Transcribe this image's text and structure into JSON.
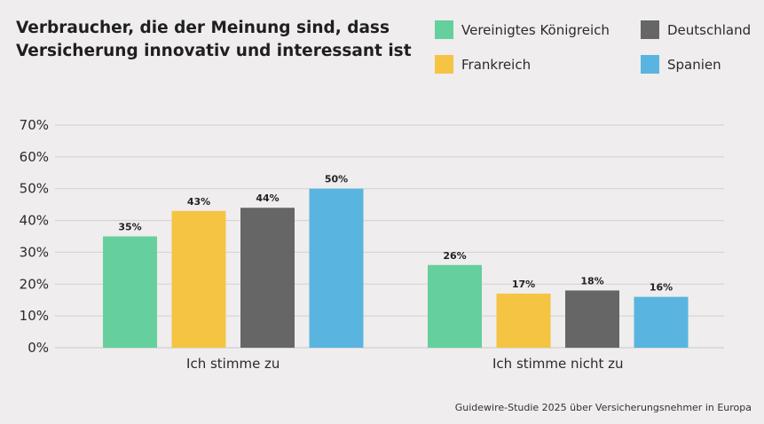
{
  "chart_data": {
    "type": "bar",
    "title": "Verbraucher, die der Meinung sind, dass Versicherung innovativ und interessant ist",
    "categories": [
      "Ich stimme zu",
      "Ich stimme nicht zu"
    ],
    "series": [
      {
        "name": "Vereinigtes Königreich",
        "color": "#66cf9e",
        "values": [
          35,
          26
        ],
        "labels": [
          "35%",
          "26%"
        ]
      },
      {
        "name": "Frankreich",
        "color": "#f5c443",
        "values": [
          43,
          17
        ],
        "labels": [
          "43%",
          "17%"
        ]
      },
      {
        "name": "Deutschland",
        "color": "#666666",
        "values": [
          44,
          18
        ],
        "labels": [
          "44%",
          "18%"
        ]
      },
      {
        "name": "Spanien",
        "color": "#59b5df",
        "values": [
          50,
          16
        ],
        "labels": [
          "50%",
          "16%"
        ]
      }
    ],
    "yticks": [
      "0%",
      "10%",
      "20%",
      "30%",
      "40%",
      "50%",
      "60%",
      "70%"
    ],
    "ylim": [
      0,
      70
    ],
    "grid": true,
    "legend_position": "top-right"
  },
  "title_lines": [
    "Verbraucher, die der Meinung sind, dass",
    "Versicherung innovativ und interessant ist"
  ],
  "source": "Guidewire-Studie 2025 über Versicherungsnehmer in Europa"
}
